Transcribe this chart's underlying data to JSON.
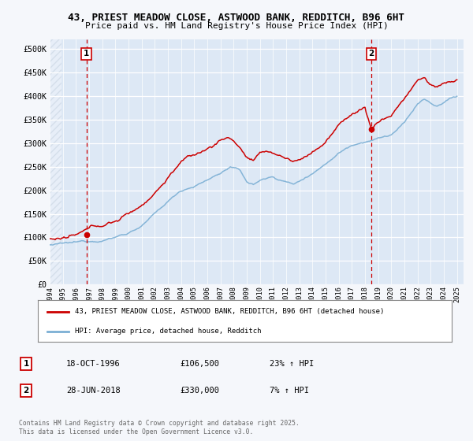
{
  "title1": "43, PRIEST MEADOW CLOSE, ASTWOOD BANK, REDDITCH, B96 6HT",
  "title2": "Price paid vs. HM Land Registry's House Price Index (HPI)",
  "ylim": [
    0,
    520000
  ],
  "yticks": [
    0,
    50000,
    100000,
    150000,
    200000,
    250000,
    300000,
    350000,
    400000,
    450000,
    500000
  ],
  "ytick_labels": [
    "£0",
    "£50K",
    "£100K",
    "£150K",
    "£200K",
    "£250K",
    "£300K",
    "£350K",
    "£400K",
    "£450K",
    "£500K"
  ],
  "hpi_color": "#7bafd4",
  "price_color": "#cc0000",
  "vline_color": "#cc0000",
  "bg_color": "#f5f7fb",
  "plot_bg": "#dde8f5",
  "grid_color": "#ffffff",
  "legend_label_price": "43, PRIEST MEADOW CLOSE, ASTWOOD BANK, REDDITCH, B96 6HT (detached house)",
  "legend_label_hpi": "HPI: Average price, detached house, Redditch",
  "transaction1_date": "18-OCT-1996",
  "transaction1_price": "£106,500",
  "transaction1_hpi": "23% ↑ HPI",
  "transaction2_date": "28-JUN-2018",
  "transaction2_price": "£330,000",
  "transaction2_hpi": "7% ↑ HPI",
  "copyright_text": "Contains HM Land Registry data © Crown copyright and database right 2025.\nThis data is licensed under the Open Government Licence v3.0.",
  "transaction1_year": 1996.79,
  "transaction2_year": 2018.49,
  "transaction1_value": 106500,
  "transaction2_value": 330000
}
